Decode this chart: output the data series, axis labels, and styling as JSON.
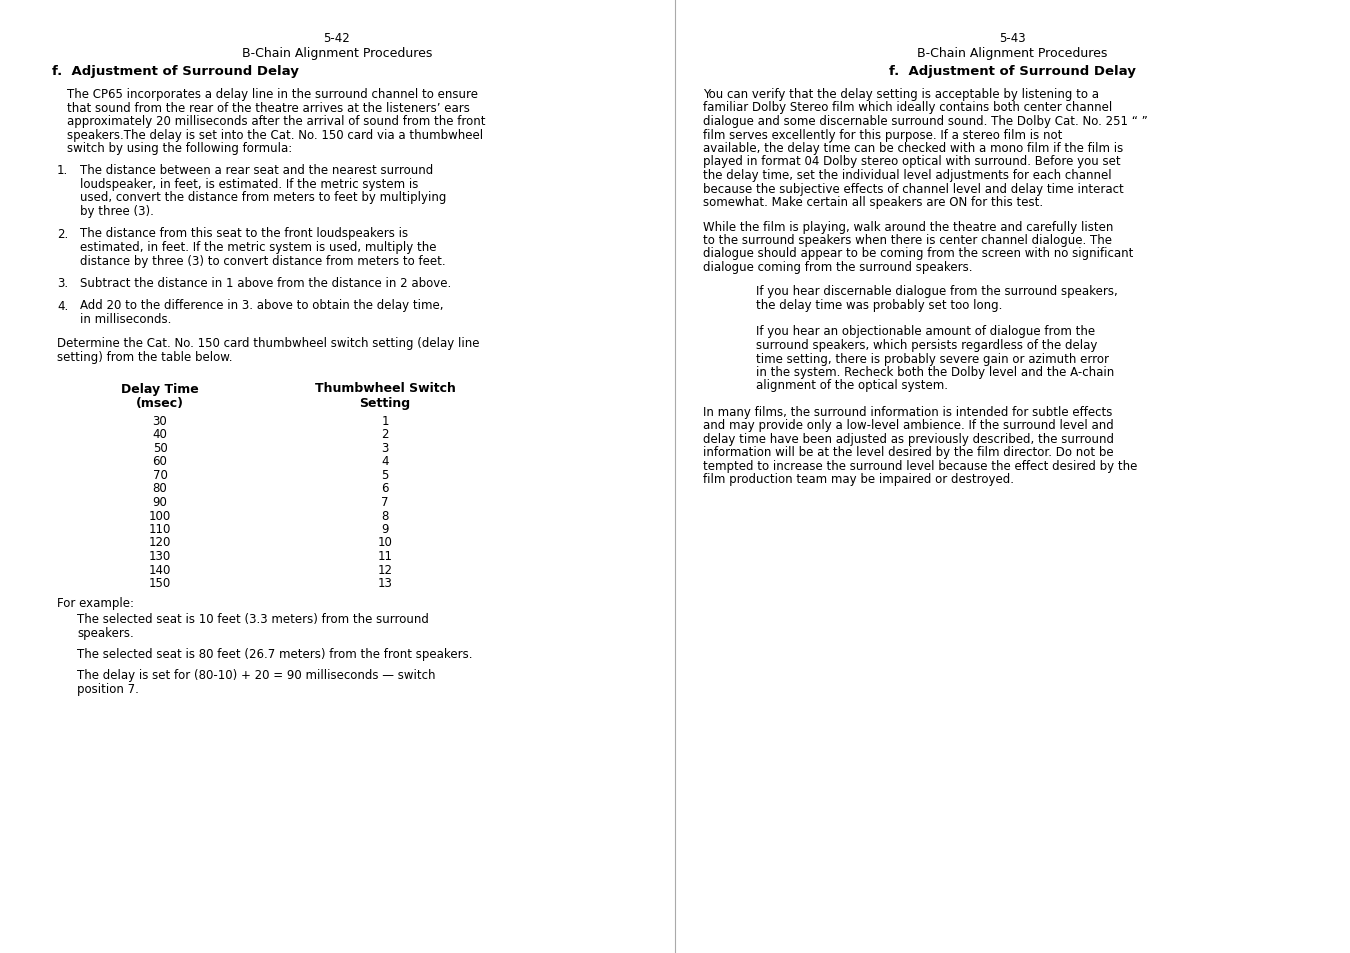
{
  "background_color": "#ffffff",
  "left_page": {
    "page_num": "5-42",
    "section": "B-Chain Alignment Procedures",
    "heading": "f.  Adjustment of Surround Delay",
    "paragraph1": "The CP65 incorporates a delay line in the surround channel to ensure that sound from the rear of the theatre arrives at the listeners’ ears approximately 20 milliseconds after the arrival of sound from the front speakers.The delay is set into the Cat. No. 150 card via a thumbwheel switch by using the following formula:",
    "items": [
      "The distance between a rear seat and the nearest surround loudspeaker, in feet, is estimated.  If the metric system is used, convert the distance from meters to feet by multiplying by three (3).",
      "The distance from this seat to the front loudspeakers is estimated, in feet.  If the metric system is used, multiply the distance by three (3) to  convert distance from meters to feet.",
      "Subtract the distance in 1 above from the distance in 2 above.",
      "Add 20 to the difference in 3. above to obtain the delay time, in milliseconds."
    ],
    "para_before_table": "Determine the Cat. No. 150 card thumbwheel switch setting (delay line setting) from the table below.",
    "table_col1_header1": "Delay Time",
    "table_col1_header2": "(msec)",
    "table_col2_header1": "Thumbwheel Switch",
    "table_col2_header2": "Setting",
    "table_data": [
      [
        "30",
        "1"
      ],
      [
        "40",
        "2"
      ],
      [
        "50",
        "3"
      ],
      [
        "60",
        "4"
      ],
      [
        "70",
        "5"
      ],
      [
        "80",
        "6"
      ],
      [
        "90",
        "7"
      ],
      [
        "100",
        "8"
      ],
      [
        "110",
        "9"
      ],
      [
        "120",
        "10"
      ],
      [
        "130",
        "11"
      ],
      [
        "140",
        "12"
      ],
      [
        "150",
        "13"
      ]
    ],
    "for_example_label": "For example:",
    "examples": [
      "The selected seat is 10 feet (3.3 meters) from the surround speakers.",
      "The selected seat is 80 feet (26.7 meters) from the front speakers.",
      "The delay is set for (80-10) + 20 = 90 milliseconds — switch position 7."
    ]
  },
  "right_page": {
    "page_num": "5-43",
    "section": "B-Chain Alignment Procedures",
    "heading": "f.  Adjustment of Surround Delay",
    "paragraph1": "You can verify that the delay setting is acceptable by listening to a familiar Dolby Stereo film which ideally contains both center channel dialogue and some discernable surround sound.  The Dolby Cat. No. 251 “    ” film serves excellently for this purpose.  If a stereo film is not available, the delay time can be checked with a mono film if the film is played in format 04 Dolby stereo optical with surround.  Before you set the delay time, set the individual level adjustments for each channel because the subjective effects of channel level and delay time interact somewhat.  Make certain all speakers are ON for this test.",
    "paragraph2": "While the film is playing, walk around the theatre and carefully listen to the surround speakers when there is center channel dialogue.  The dialogue should appear to be coming from the screen with no significant dialogue coming from the surround speakers.",
    "indented1": "If you hear discernable dialogue from the surround speakers, the delay time was probably set too long.",
    "indented2": "If you hear an objectionable amount of dialogue from the surround speakers, which persists regardless of the delay time setting, there is probably severe gain or azimuth error in the system.  Recheck both the Dolby level and the A-chain alignment of the optical system.",
    "paragraph3": "In many films, the surround information is intended for subtle effects and may provide only a low-level ambience.  If the surround level and delay time have been adjusted as previously described, the surround information will be at the level desired by the film director.  Do not be tempted to increase the surround level because the effect desired by the film production team may be impaired or destroyed."
  }
}
